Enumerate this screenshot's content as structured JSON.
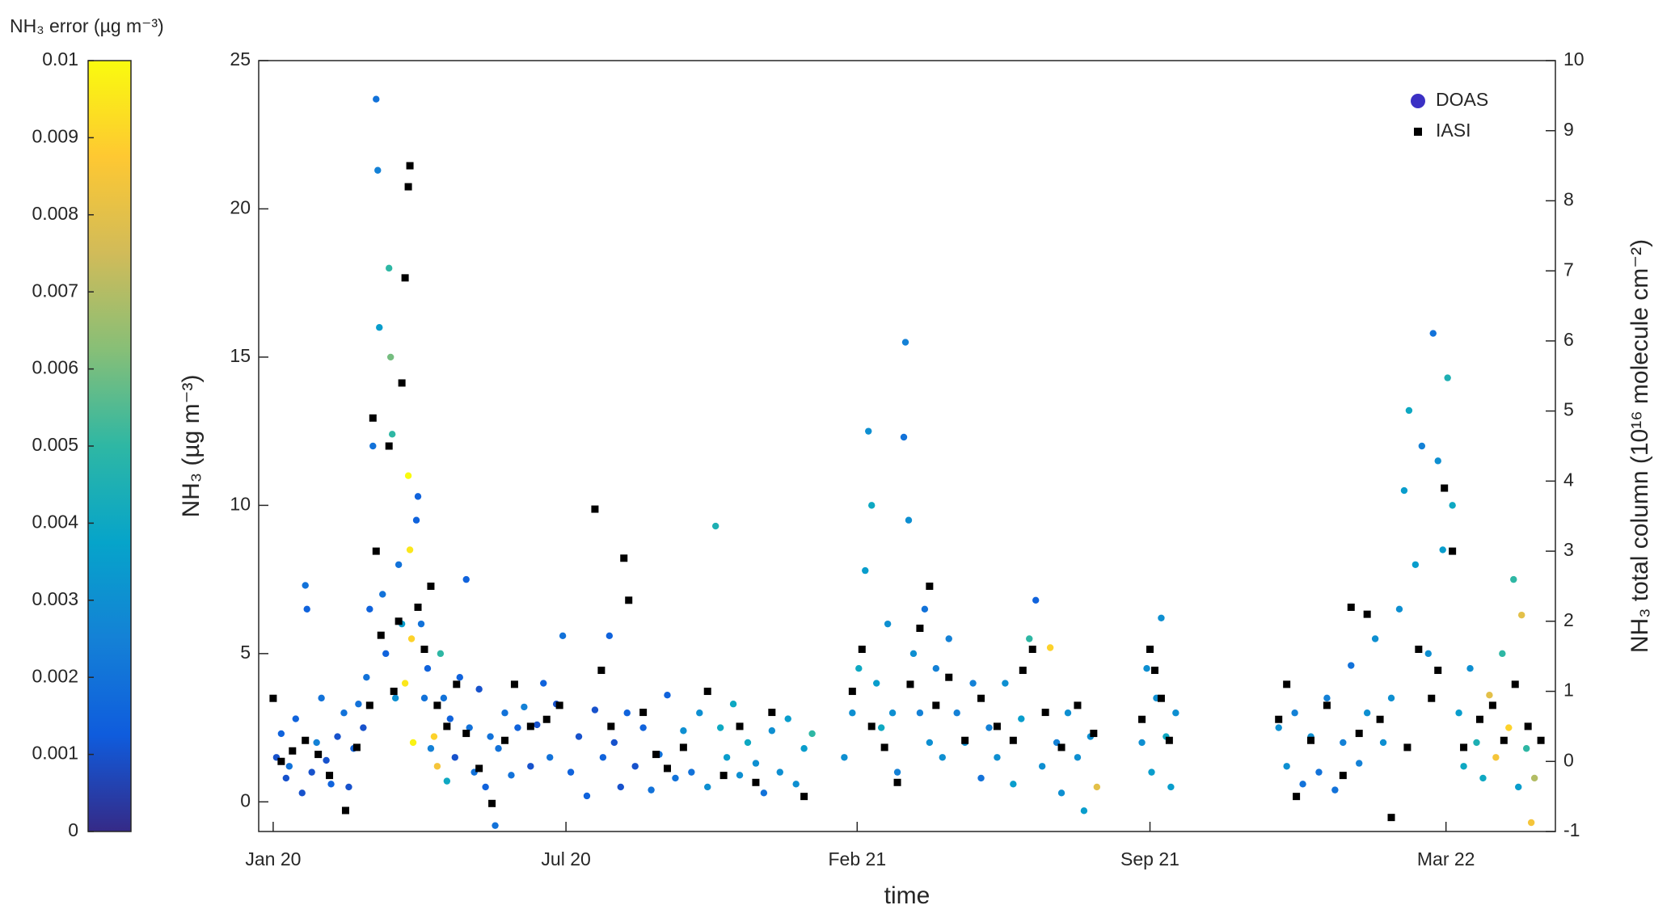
{
  "chart_data": {
    "type": "scatter",
    "xlabel": "time",
    "ylabel": "NH₃ (µg m⁻³)",
    "y2label": "NH₃ total column (10¹⁶ molecule cm⁻²)",
    "xlim": [
      -9,
      797
    ],
    "xticks": [
      {
        "value": 0,
        "label": "Jan 20"
      },
      {
        "value": 182,
        "label": "Jul 20"
      },
      {
        "value": 363,
        "label": "Feb 21"
      },
      {
        "value": 545,
        "label": "Sep 21"
      },
      {
        "value": 729,
        "label": "Mar 22"
      }
    ],
    "ylim": [
      -1,
      25
    ],
    "yticks": [
      0,
      5,
      10,
      15,
      20,
      25
    ],
    "y2lim": [
      -1,
      10
    ],
    "y2ticks": [
      -1,
      0,
      1,
      2,
      3,
      4,
      5,
      6,
      7,
      8,
      9,
      10
    ],
    "legend": "top-right",
    "colormap": "parula",
    "colorbar": {
      "label": "NH₃ error (µg m⁻³)",
      "lim": [
        0,
        0.01
      ],
      "ticks": [
        0,
        0.001,
        0.002,
        0.003,
        0.004,
        0.005,
        0.006,
        0.007,
        0.008,
        0.009,
        0.01
      ]
    },
    "series": [
      {
        "name": "DOAS",
        "color": "#3b30c4",
        "marker": "circle",
        "x": [
          2,
          5,
          8,
          10,
          14,
          18,
          20,
          21,
          24,
          27,
          30,
          33,
          36,
          40,
          44,
          47,
          50,
          53,
          56,
          58,
          60,
          62,
          64,
          65,
          66,
          68,
          70,
          72,
          73,
          74,
          76,
          78,
          80,
          82,
          84,
          85,
          86,
          87,
          89,
          90,
          92,
          94,
          96,
          98,
          100,
          102,
          104,
          106,
          108,
          110,
          113,
          116,
          120,
          122,
          125,
          128,
          132,
          135,
          138,
          140,
          144,
          148,
          152,
          156,
          160,
          164,
          168,
          172,
          176,
          180,
          185,
          190,
          195,
          200,
          205,
          209,
          212,
          216,
          220,
          225,
          230,
          235,
          240,
          245,
          250,
          255,
          260,
          265,
          270,
          275,
          278,
          282,
          286,
          290,
          295,
          300,
          305,
          310,
          315,
          320,
          325,
          330,
          335,
          355,
          360,
          364,
          368,
          370,
          372,
          375,
          378,
          382,
          385,
          388,
          392,
          393,
          395,
          398,
          402,
          405,
          408,
          412,
          416,
          420,
          425,
          430,
          435,
          440,
          445,
          450,
          455,
          460,
          465,
          470,
          474,
          478,
          483,
          487,
          490,
          494,
          500,
          504,
          508,
          512,
          540,
          543,
          546,
          549,
          552,
          555,
          558,
          561,
          625,
          630,
          635,
          640,
          645,
          650,
          655,
          660,
          665,
          670,
          675,
          680,
          685,
          690,
          695,
          700,
          703,
          706,
          710,
          714,
          718,
          721,
          724,
          727,
          730,
          733,
          737,
          740,
          744,
          748,
          752,
          756,
          760,
          764,
          768,
          771,
          774,
          776,
          779,
          782,
          784
        ],
        "values": [
          1.5,
          2.3,
          0.8,
          1.2,
          2.8,
          0.3,
          7.3,
          6.5,
          1.0,
          2.0,
          3.5,
          1.4,
          0.6,
          2.2,
          3.0,
          0.5,
          1.8,
          3.3,
          2.5,
          4.2,
          6.5,
          12.0,
          23.7,
          21.3,
          16.0,
          7.0,
          5.0,
          18.0,
          15.0,
          12.4,
          3.5,
          8.0,
          6.0,
          4.0,
          11.0,
          8.5,
          5.5,
          2.0,
          9.5,
          10.3,
          6.0,
          3.5,
          4.5,
          1.8,
          2.2,
          1.2,
          5.0,
          3.5,
          0.7,
          2.8,
          1.5,
          4.2,
          7.5,
          2.5,
          1.0,
          3.8,
          0.5,
          2.2,
          -0.8,
          1.8,
          3.0,
          0.9,
          2.5,
          3.2,
          1.2,
          2.6,
          4.0,
          1.5,
          3.3,
          5.6,
          1.0,
          2.2,
          0.2,
          3.1,
          1.5,
          5.6,
          2.0,
          0.5,
          3.0,
          1.2,
          2.5,
          0.4,
          1.6,
          3.6,
          0.8,
          2.4,
          1.0,
          3.0,
          0.5,
          9.3,
          2.5,
          1.5,
          3.3,
          0.9,
          2.0,
          1.3,
          0.3,
          2.4,
          1.0,
          2.8,
          0.6,
          1.8,
          2.3,
          1.5,
          3.0,
          4.5,
          7.8,
          12.5,
          10.0,
          4.0,
          2.5,
          6.0,
          3.0,
          1.0,
          12.3,
          15.5,
          9.5,
          5.0,
          3.0,
          6.5,
          2.0,
          4.5,
          1.5,
          5.5,
          3.0,
          2.0,
          4.0,
          0.8,
          2.5,
          1.5,
          4.0,
          0.6,
          2.8,
          5.5,
          6.8,
          1.2,
          5.2,
          2.0,
          0.3,
          3.0,
          1.5,
          -0.3,
          2.2,
          0.5,
          2.0,
          4.5,
          1.0,
          3.5,
          6.2,
          2.2,
          0.5,
          3.0,
          2.5,
          1.2,
          3.0,
          0.6,
          2.2,
          1.0,
          3.5,
          0.4,
          2.0,
          4.6,
          1.3,
          3.0,
          5.5,
          2.0,
          3.5,
          6.5,
          10.5,
          13.2,
          8.0,
          12.0,
          5.0,
          15.8,
          11.5,
          8.5,
          14.3,
          10.0,
          3.0,
          1.2,
          4.5,
          2.0,
          0.8,
          3.6,
          1.5,
          5.0,
          2.5,
          7.5,
          0.5,
          6.3,
          1.8,
          -0.7,
          0.8
        ],
        "errors": [
          0.001,
          0.0015,
          0.001,
          0.002,
          0.0015,
          0.001,
          0.002,
          0.0015,
          0.001,
          0.0025,
          0.002,
          0.001,
          0.0015,
          0.001,
          0.002,
          0.001,
          0.0015,
          0.002,
          0.001,
          0.002,
          0.0015,
          0.002,
          0.002,
          0.0025,
          0.0035,
          0.002,
          0.0015,
          0.005,
          0.006,
          0.005,
          0.003,
          0.002,
          0.0035,
          0.0095,
          0.01,
          0.0095,
          0.009,
          0.0098,
          0.0015,
          0.0015,
          0.002,
          0.002,
          0.0015,
          0.0025,
          0.009,
          0.0085,
          0.005,
          0.002,
          0.004,
          0.0015,
          0.001,
          0.0015,
          0.0015,
          0.002,
          0.002,
          0.001,
          0.0015,
          0.002,
          0.002,
          0.002,
          0.002,
          0.002,
          0.0015,
          0.0025,
          0.001,
          0.001,
          0.0015,
          0.002,
          0.001,
          0.002,
          0.0015,
          0.001,
          0.0015,
          0.001,
          0.0015,
          0.0015,
          0.001,
          0.001,
          0.0015,
          0.001,
          0.0015,
          0.002,
          0.002,
          0.0015,
          0.002,
          0.003,
          0.002,
          0.003,
          0.003,
          0.0045,
          0.004,
          0.0035,
          0.004,
          0.003,
          0.004,
          0.003,
          0.002,
          0.003,
          0.003,
          0.0035,
          0.003,
          0.0035,
          0.005,
          0.003,
          0.003,
          0.004,
          0.0035,
          0.003,
          0.004,
          0.0035,
          0.004,
          0.003,
          0.003,
          0.0025,
          0.002,
          0.0025,
          0.003,
          0.003,
          0.0025,
          0.002,
          0.003,
          0.0025,
          0.003,
          0.0025,
          0.0025,
          0.003,
          0.0025,
          0.002,
          0.0025,
          0.003,
          0.003,
          0.0035,
          0.0035,
          0.005,
          0.0015,
          0.003,
          0.009,
          0.0025,
          0.003,
          0.003,
          0.003,
          0.0035,
          0.003,
          0.008,
          0.003,
          0.003,
          0.0035,
          0.003,
          0.003,
          0.004,
          0.0035,
          0.003,
          0.003,
          0.003,
          0.0025,
          0.002,
          0.003,
          0.002,
          0.0025,
          0.002,
          0.0025,
          0.002,
          0.0025,
          0.003,
          0.003,
          0.003,
          0.003,
          0.003,
          0.0035,
          0.004,
          0.0035,
          0.0025,
          0.003,
          0.002,
          0.003,
          0.0035,
          0.0045,
          0.004,
          0.0035,
          0.004,
          0.003,
          0.0045,
          0.004,
          0.008,
          0.0085,
          0.005,
          0.009,
          0.005,
          0.0035,
          0.008,
          0.005,
          0.0085,
          0.007
        ]
      },
      {
        "name": "IASI",
        "color": "#000000",
        "marker": "square",
        "axis": "y2",
        "x": [
          0,
          5,
          12,
          20,
          28,
          35,
          45,
          52,
          60,
          62,
          64,
          67,
          72,
          75,
          78,
          80,
          82,
          84,
          85,
          90,
          94,
          98,
          102,
          108,
          114,
          120,
          128,
          136,
          144,
          150,
          160,
          170,
          178,
          200,
          204,
          210,
          218,
          221,
          230,
          238,
          245,
          255,
          270,
          280,
          290,
          300,
          310,
          330,
          360,
          366,
          372,
          380,
          388,
          396,
          402,
          408,
          412,
          420,
          430,
          440,
          450,
          460,
          466,
          472,
          480,
          490,
          500,
          510,
          540,
          545,
          548,
          552,
          557,
          625,
          630,
          636,
          645,
          655,
          665,
          670,
          675,
          680,
          688,
          695,
          705,
          712,
          720,
          724,
          728,
          733,
          740,
          750,
          758,
          765,
          772,
          780,
          788
        ],
        "values": [
          0.9,
          0.0,
          0.15,
          0.3,
          0.1,
          -0.2,
          -0.7,
          0.2,
          0.8,
          4.9,
          3.0,
          1.8,
          4.5,
          1.0,
          2.0,
          5.4,
          6.9,
          8.2,
          8.5,
          2.2,
          1.6,
          2.5,
          0.8,
          0.5,
          1.1,
          0.4,
          -0.1,
          -0.6,
          0.3,
          1.1,
          0.5,
          0.6,
          0.8,
          3.6,
          1.3,
          0.5,
          2.9,
          2.3,
          0.7,
          0.1,
          -0.1,
          0.2,
          1.0,
          -0.2,
          0.5,
          -0.3,
          0.7,
          -0.5,
          1.0,
          1.6,
          0.5,
          0.2,
          -0.3,
          1.1,
          1.9,
          2.5,
          0.8,
          1.2,
          0.3,
          0.9,
          0.5,
          0.3,
          1.3,
          1.6,
          0.7,
          0.2,
          0.8,
          0.4,
          0.6,
          1.6,
          1.3,
          0.9,
          0.3,
          0.6,
          1.1,
          -0.5,
          0.3,
          0.8,
          -0.2,
          2.2,
          0.4,
          2.1,
          0.6,
          -0.8,
          0.2,
          1.6,
          0.9,
          1.3,
          3.9,
          3.0,
          0.2,
          0.6,
          0.8,
          0.3,
          1.1,
          0.5,
          0.3
        ]
      }
    ]
  }
}
